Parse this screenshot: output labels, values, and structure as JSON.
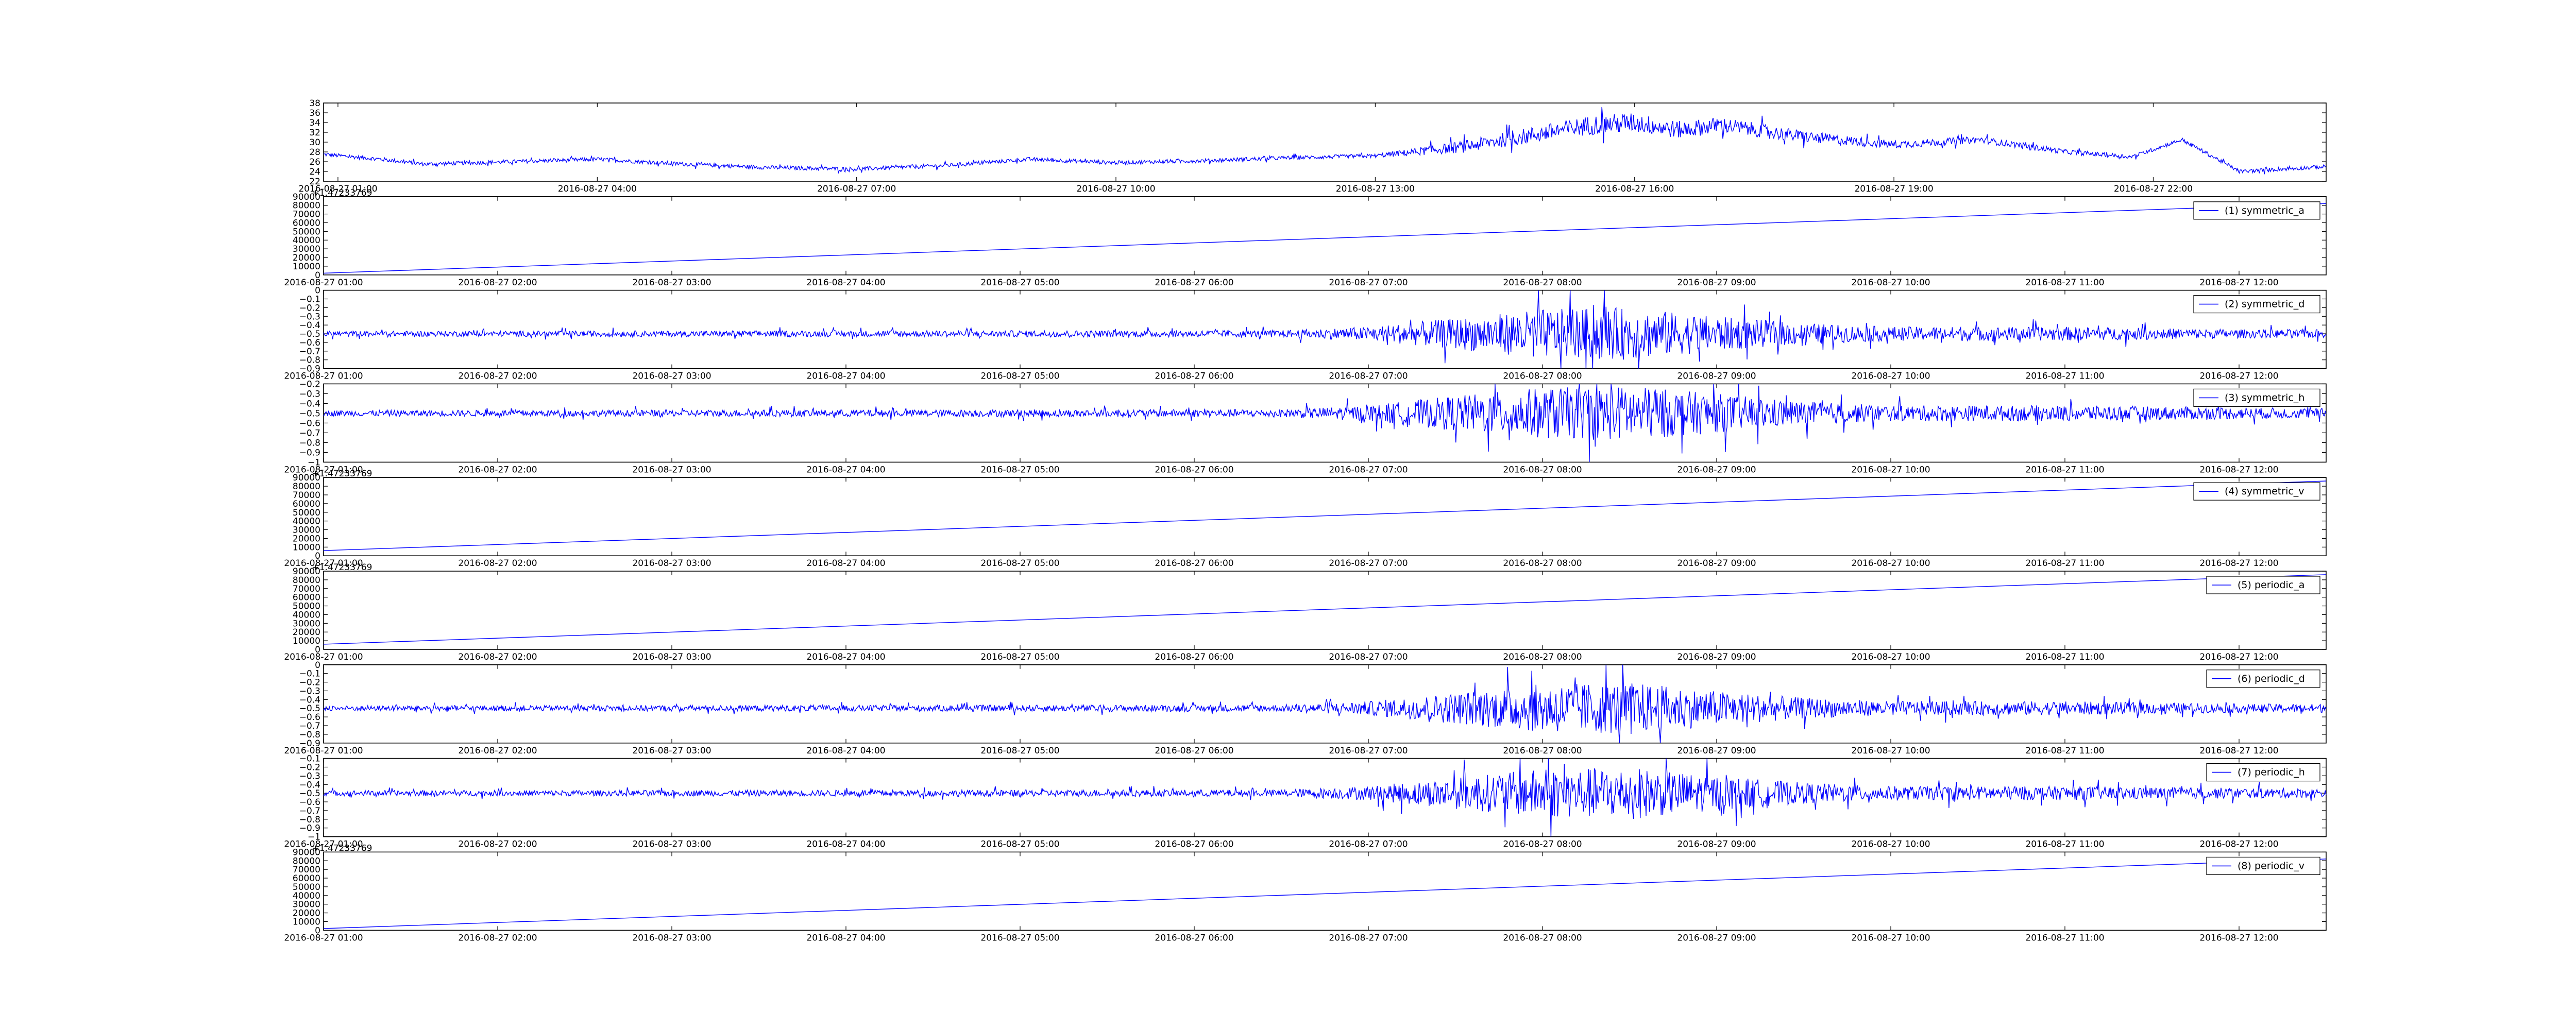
{
  "figure": {
    "background": "#ffffff",
    "line_color": "#0000ff",
    "axis_color": "#000000"
  },
  "chart_data": [
    {
      "type": "line",
      "x_unit": "datetime",
      "x_range": [
        "2016-08-27 00:50",
        "2016-08-28 00:00"
      ],
      "ylim": [
        22,
        38
      ],
      "yticks": [
        22,
        24,
        26,
        28,
        30,
        32,
        34,
        36,
        38
      ],
      "xtick_labels": [
        "2016-08-27 01:00",
        "2016-08-27 04:00",
        "2016-08-27 07:00",
        "2016-08-27 10:00",
        "2016-08-27 13:00",
        "2016-08-27 16:00",
        "2016-08-27 19:00",
        "2016-08-27 22:00"
      ],
      "xticks": [
        "2016-08-27 01:00",
        "2016-08-27 04:00",
        "2016-08-27 07:00",
        "2016-08-27 10:00",
        "2016-08-27 13:00",
        "2016-08-27 16:00",
        "2016-08-27 19:00",
        "2016-08-27 22:00"
      ],
      "offset_text": "",
      "legend": "",
      "series": [
        {
          "x": [
            "2016-08-27 00:50",
            "2016-08-27 01:30",
            "2016-08-27 02:00",
            "2016-08-27 03:00",
            "2016-08-27 04:00",
            "2016-08-27 05:00",
            "2016-08-27 06:00",
            "2016-08-27 07:00",
            "2016-08-27 08:00",
            "2016-08-27 09:00",
            "2016-08-27 10:00",
            "2016-08-27 11:00",
            "2016-08-27 12:00",
            "2016-08-27 13:00",
            "2016-08-27 14:00",
            "2016-08-27 15:00",
            "2016-08-27 15:30",
            "2016-08-27 16:00",
            "2016-08-27 16:30",
            "2016-08-27 17:00",
            "2016-08-27 18:00",
            "2016-08-27 19:00",
            "2016-08-27 20:00",
            "2016-08-27 21:00",
            "2016-08-27 21:45",
            "2016-08-27 22:20",
            "2016-08-27 23:00",
            "2016-08-28 00:00"
          ],
          "y": [
            27.5,
            26.5,
            25.5,
            26,
            26.5,
            25.5,
            24.8,
            24.5,
            25.2,
            26.5,
            25.8,
            26.2,
            26.8,
            27.2,
            29,
            32,
            33.5,
            34,
            32.5,
            33.5,
            31,
            29.5,
            30.5,
            28,
            27,
            30.5,
            24,
            25
          ],
          "noise_amplitude": [
            0.4,
            0.4,
            0.4,
            0.4,
            0.4,
            0.4,
            0.4,
            0.4,
            0.4,
            0.4,
            0.4,
            0.4,
            0.4,
            0.4,
            1.2,
            1.8,
            2.0,
            2.0,
            1.8,
            1.6,
            1.2,
            0.8,
            0.7,
            0.5,
            0.4,
            0.4,
            0.4,
            0.4
          ]
        }
      ]
    },
    {
      "type": "line",
      "x_unit": "datetime",
      "x_range": [
        "2016-08-27 01:00",
        "2016-08-27 12:30"
      ],
      "ylim": [
        0,
        90000
      ],
      "yticks": [
        0,
        10000,
        20000,
        30000,
        40000,
        50000,
        60000,
        70000,
        80000,
        90000
      ],
      "xtick_labels": [
        "2016-08-27 01:00",
        "2016-08-27 02:00",
        "2016-08-27 03:00",
        "2016-08-27 04:00",
        "2016-08-27 05:00",
        "2016-08-27 06:00",
        "2016-08-27 07:00",
        "2016-08-27 08:00",
        "2016-08-27 09:00",
        "2016-08-27 10:00",
        "2016-08-27 11:00",
        "2016-08-27 12:00"
      ],
      "xticks": [
        "2016-08-27 01:00",
        "2016-08-27 02:00",
        "2016-08-27 03:00",
        "2016-08-27 04:00",
        "2016-08-27 05:00",
        "2016-08-27 06:00",
        "2016-08-27 07:00",
        "2016-08-27 08:00",
        "2016-08-27 09:00",
        "2016-08-27 10:00",
        "2016-08-27 11:00",
        "2016-08-27 12:00"
      ],
      "offset_text": "+1.47233769",
      "legend": "(1) symmetric_a",
      "series": [
        {
          "name": "(1) symmetric_a",
          "x": [
            "2016-08-27 01:00",
            "2016-08-27 12:30"
          ],
          "y": [
            2000,
            82000
          ]
        }
      ]
    },
    {
      "type": "line",
      "x_unit": "datetime",
      "x_range": [
        "2016-08-27 01:00",
        "2016-08-27 12:30"
      ],
      "ylim": [
        -0.9,
        0.0
      ],
      "yticks": [
        -0.9,
        -0.8,
        -0.7,
        -0.6,
        -0.5,
        -0.4,
        -0.3,
        -0.2,
        -0.1,
        0.0
      ],
      "xtick_labels": [
        "2016-08-27 01:00",
        "2016-08-27 02:00",
        "2016-08-27 03:00",
        "2016-08-27 04:00",
        "2016-08-27 05:00",
        "2016-08-27 06:00",
        "2016-08-27 07:00",
        "2016-08-27 08:00",
        "2016-08-27 09:00",
        "2016-08-27 10:00",
        "2016-08-27 11:00",
        "2016-08-27 12:00"
      ],
      "xticks": [
        "2016-08-27 01:00",
        "2016-08-27 02:00",
        "2016-08-27 03:00",
        "2016-08-27 04:00",
        "2016-08-27 05:00",
        "2016-08-27 06:00",
        "2016-08-27 07:00",
        "2016-08-27 08:00",
        "2016-08-27 09:00",
        "2016-08-27 10:00",
        "2016-08-27 11:00",
        "2016-08-27 12:00"
      ],
      "offset_text": "",
      "legend": "(2) symmetric_d",
      "series": [
        {
          "name": "(2) symmetric_d",
          "x": [
            "2016-08-27 01:00",
            "2016-08-27 06:30",
            "2016-08-27 07:00",
            "2016-08-27 07:30",
            "2016-08-27 08:00",
            "2016-08-27 08:30",
            "2016-08-27 09:00",
            "2016-08-27 09:30",
            "2016-08-27 10:00",
            "2016-08-27 11:00",
            "2016-08-27 12:00",
            "2016-08-27 12:30"
          ],
          "y": [
            -0.5,
            -0.5,
            -0.5,
            -0.5,
            -0.5,
            -0.5,
            -0.5,
            -0.5,
            -0.5,
            -0.5,
            -0.5,
            -0.5
          ],
          "noise_amplitude": [
            0.03,
            0.04,
            0.08,
            0.18,
            0.28,
            0.3,
            0.2,
            0.12,
            0.08,
            0.08,
            0.05,
            0.05
          ]
        }
      ]
    },
    {
      "type": "line",
      "x_unit": "datetime",
      "x_range": [
        "2016-08-27 01:00",
        "2016-08-27 12:30"
      ],
      "ylim": [
        -1.0,
        -0.2
      ],
      "yticks": [
        -1.0,
        -0.9,
        -0.8,
        -0.7,
        -0.6,
        -0.5,
        -0.4,
        -0.3,
        -0.2
      ],
      "xtick_labels": [
        "2016-08-27 01:00",
        "2016-08-27 02:00",
        "2016-08-27 03:00",
        "2016-08-27 04:00",
        "2016-08-27 05:00",
        "2016-08-27 06:00",
        "2016-08-27 07:00",
        "2016-08-27 08:00",
        "2016-08-27 09:00",
        "2016-08-27 10:00",
        "2016-08-27 11:00",
        "2016-08-27 12:00"
      ],
      "xticks": [
        "2016-08-27 01:00",
        "2016-08-27 02:00",
        "2016-08-27 03:00",
        "2016-08-27 04:00",
        "2016-08-27 05:00",
        "2016-08-27 06:00",
        "2016-08-27 07:00",
        "2016-08-27 08:00",
        "2016-08-27 09:00",
        "2016-08-27 10:00",
        "2016-08-27 11:00",
        "2016-08-27 12:00"
      ],
      "offset_text": "",
      "legend": "(3) symmetric_h",
      "series": [
        {
          "name": "(3) symmetric_h",
          "x": [
            "2016-08-27 01:00",
            "2016-08-27 06:30",
            "2016-08-27 07:00",
            "2016-08-27 07:30",
            "2016-08-27 08:00",
            "2016-08-27 08:30",
            "2016-08-27 09:00",
            "2016-08-27 09:30",
            "2016-08-27 10:00",
            "2016-08-27 11:00",
            "2016-08-27 12:00",
            "2016-08-27 12:30"
          ],
          "y": [
            -0.5,
            -0.5,
            -0.5,
            -0.5,
            -0.5,
            -0.5,
            -0.5,
            -0.5,
            -0.5,
            -0.5,
            -0.5,
            -0.5
          ],
          "noise_amplitude": [
            0.03,
            0.04,
            0.08,
            0.18,
            0.26,
            0.28,
            0.2,
            0.12,
            0.08,
            0.08,
            0.06,
            0.05
          ]
        }
      ]
    },
    {
      "type": "line",
      "x_unit": "datetime",
      "x_range": [
        "2016-08-27 01:00",
        "2016-08-27 12:30"
      ],
      "ylim": [
        0,
        90000
      ],
      "yticks": [
        0,
        10000,
        20000,
        30000,
        40000,
        50000,
        60000,
        70000,
        80000,
        90000
      ],
      "xtick_labels": [
        "2016-08-27 01:00",
        "2016-08-27 02:00",
        "2016-08-27 03:00",
        "2016-08-27 04:00",
        "2016-08-27 05:00",
        "2016-08-27 06:00",
        "2016-08-27 07:00",
        "2016-08-27 08:00",
        "2016-08-27 09:00",
        "2016-08-27 10:00",
        "2016-08-27 11:00",
        "2016-08-27 12:00"
      ],
      "xticks": [
        "2016-08-27 01:00",
        "2016-08-27 02:00",
        "2016-08-27 03:00",
        "2016-08-27 04:00",
        "2016-08-27 05:00",
        "2016-08-27 06:00",
        "2016-08-27 07:00",
        "2016-08-27 08:00",
        "2016-08-27 09:00",
        "2016-08-27 10:00",
        "2016-08-27 11:00",
        "2016-08-27 12:00"
      ],
      "offset_text": "+1.47233769",
      "legend": "(4) symmetric_v",
      "series": [
        {
          "name": "(4) symmetric_v",
          "x": [
            "2016-08-27 01:00",
            "2016-08-27 12:30"
          ],
          "y": [
            6000,
            86000
          ]
        }
      ]
    },
    {
      "type": "line",
      "x_unit": "datetime",
      "x_range": [
        "2016-08-27 01:00",
        "2016-08-27 12:30"
      ],
      "ylim": [
        0,
        90000
      ],
      "yticks": [
        0,
        10000,
        20000,
        30000,
        40000,
        50000,
        60000,
        70000,
        80000,
        90000
      ],
      "xtick_labels": [
        "2016-08-27 01:00",
        "2016-08-27 02:00",
        "2016-08-27 03:00",
        "2016-08-27 04:00",
        "2016-08-27 05:00",
        "2016-08-27 06:00",
        "2016-08-27 07:00",
        "2016-08-27 08:00",
        "2016-08-27 09:00",
        "2016-08-27 10:00",
        "2016-08-27 11:00",
        "2016-08-27 12:00"
      ],
      "xticks": [
        "2016-08-27 01:00",
        "2016-08-27 02:00",
        "2016-08-27 03:00",
        "2016-08-27 04:00",
        "2016-08-27 05:00",
        "2016-08-27 06:00",
        "2016-08-27 07:00",
        "2016-08-27 08:00",
        "2016-08-27 09:00",
        "2016-08-27 10:00",
        "2016-08-27 11:00",
        "2016-08-27 12:00"
      ],
      "offset_text": "+1.47233769",
      "legend": "(5) periodic_a",
      "series": [
        {
          "name": "(5) periodic_a",
          "x": [
            "2016-08-27 01:00",
            "2016-08-27 12:30"
          ],
          "y": [
            6000,
            86000
          ]
        }
      ]
    },
    {
      "type": "line",
      "x_unit": "datetime",
      "x_range": [
        "2016-08-27 01:00",
        "2016-08-27 12:30"
      ],
      "ylim": [
        -0.9,
        0.0
      ],
      "yticks": [
        -0.9,
        -0.8,
        -0.7,
        -0.6,
        -0.5,
        -0.4,
        -0.3,
        -0.2,
        -0.1,
        0.0
      ],
      "xtick_labels": [
        "2016-08-27 01:00",
        "2016-08-27 02:00",
        "2016-08-27 03:00",
        "2016-08-27 04:00",
        "2016-08-27 05:00",
        "2016-08-27 06:00",
        "2016-08-27 07:00",
        "2016-08-27 08:00",
        "2016-08-27 09:00",
        "2016-08-27 10:00",
        "2016-08-27 11:00",
        "2016-08-27 12:00"
      ],
      "xticks": [
        "2016-08-27 01:00",
        "2016-08-27 02:00",
        "2016-08-27 03:00",
        "2016-08-27 04:00",
        "2016-08-27 05:00",
        "2016-08-27 06:00",
        "2016-08-27 07:00",
        "2016-08-27 08:00",
        "2016-08-27 09:00",
        "2016-08-27 10:00",
        "2016-08-27 11:00",
        "2016-08-27 12:00"
      ],
      "offset_text": "",
      "legend": "(6) periodic_d",
      "series": [
        {
          "name": "(6) periodic_d",
          "x": [
            "2016-08-27 01:00",
            "2016-08-27 06:30",
            "2016-08-27 07:00",
            "2016-08-27 07:30",
            "2016-08-27 08:00",
            "2016-08-27 08:30",
            "2016-08-27 09:00",
            "2016-08-27 09:30",
            "2016-08-27 10:00",
            "2016-08-27 11:00",
            "2016-08-27 12:00",
            "2016-08-27 12:30"
          ],
          "y": [
            -0.5,
            -0.5,
            -0.5,
            -0.5,
            -0.5,
            -0.5,
            -0.5,
            -0.5,
            -0.5,
            -0.5,
            -0.5,
            -0.5
          ],
          "noise_amplitude": [
            0.03,
            0.04,
            0.08,
            0.18,
            0.28,
            0.3,
            0.2,
            0.12,
            0.08,
            0.08,
            0.05,
            0.05
          ]
        }
      ]
    },
    {
      "type": "line",
      "x_unit": "datetime",
      "x_range": [
        "2016-08-27 01:00",
        "2016-08-27 12:30"
      ],
      "ylim": [
        -1.0,
        -0.1
      ],
      "yticks": [
        -1.0,
        -0.9,
        -0.8,
        -0.7,
        -0.6,
        -0.5,
        -0.4,
        -0.3,
        -0.2,
        -0.1
      ],
      "xtick_labels": [
        "2016-08-27 01:00",
        "2016-08-27 02:00",
        "2016-08-27 03:00",
        "2016-08-27 04:00",
        "2016-08-27 05:00",
        "2016-08-27 06:00",
        "2016-08-27 07:00",
        "2016-08-27 08:00",
        "2016-08-27 09:00",
        "2016-08-27 10:00",
        "2016-08-27 11:00",
        "2016-08-27 12:00"
      ],
      "xticks": [
        "2016-08-27 01:00",
        "2016-08-27 02:00",
        "2016-08-27 03:00",
        "2016-08-27 04:00",
        "2016-08-27 05:00",
        "2016-08-27 06:00",
        "2016-08-27 07:00",
        "2016-08-27 08:00",
        "2016-08-27 09:00",
        "2016-08-27 10:00",
        "2016-08-27 11:00",
        "2016-08-27 12:00"
      ],
      "offset_text": "",
      "legend": "(7) periodic_h",
      "series": [
        {
          "name": "(7) periodic_h",
          "x": [
            "2016-08-27 01:00",
            "2016-08-27 06:30",
            "2016-08-27 07:00",
            "2016-08-27 07:30",
            "2016-08-27 08:00",
            "2016-08-27 08:30",
            "2016-08-27 09:00",
            "2016-08-27 09:30",
            "2016-08-27 10:00",
            "2016-08-27 11:00",
            "2016-08-27 12:00",
            "2016-08-27 12:30"
          ],
          "y": [
            -0.5,
            -0.5,
            -0.5,
            -0.5,
            -0.5,
            -0.5,
            -0.5,
            -0.5,
            -0.5,
            -0.5,
            -0.5,
            -0.5
          ],
          "noise_amplitude": [
            0.03,
            0.04,
            0.08,
            0.18,
            0.28,
            0.3,
            0.2,
            0.12,
            0.08,
            0.08,
            0.06,
            0.05
          ]
        }
      ]
    },
    {
      "type": "line",
      "x_unit": "datetime",
      "x_range": [
        "2016-08-27 01:00",
        "2016-08-27 12:30"
      ],
      "ylim": [
        0,
        90000
      ],
      "yticks": [
        0,
        10000,
        20000,
        30000,
        40000,
        50000,
        60000,
        70000,
        80000,
        90000
      ],
      "xtick_labels": [
        "2016-08-27 01:00",
        "2016-08-27 02:00",
        "2016-08-27 03:00",
        "2016-08-27 04:00",
        "2016-08-27 05:00",
        "2016-08-27 06:00",
        "2016-08-27 07:00",
        "2016-08-27 08:00",
        "2016-08-27 09:00",
        "2016-08-27 10:00",
        "2016-08-27 11:00",
        "2016-08-27 12:00"
      ],
      "xticks": [
        "2016-08-27 01:00",
        "2016-08-27 02:00",
        "2016-08-27 03:00",
        "2016-08-27 04:00",
        "2016-08-27 05:00",
        "2016-08-27 06:00",
        "2016-08-27 07:00",
        "2016-08-27 08:00",
        "2016-08-27 09:00",
        "2016-08-27 10:00",
        "2016-08-27 11:00",
        "2016-08-27 12:00"
      ],
      "offset_text": "+1.47233769",
      "legend": "(8) periodic_v",
      "series": [
        {
          "name": "(8) periodic_v",
          "x": [
            "2016-08-27 01:00",
            "2016-08-27 12:30"
          ],
          "y": [
            2000,
            82000
          ]
        }
      ]
    }
  ]
}
